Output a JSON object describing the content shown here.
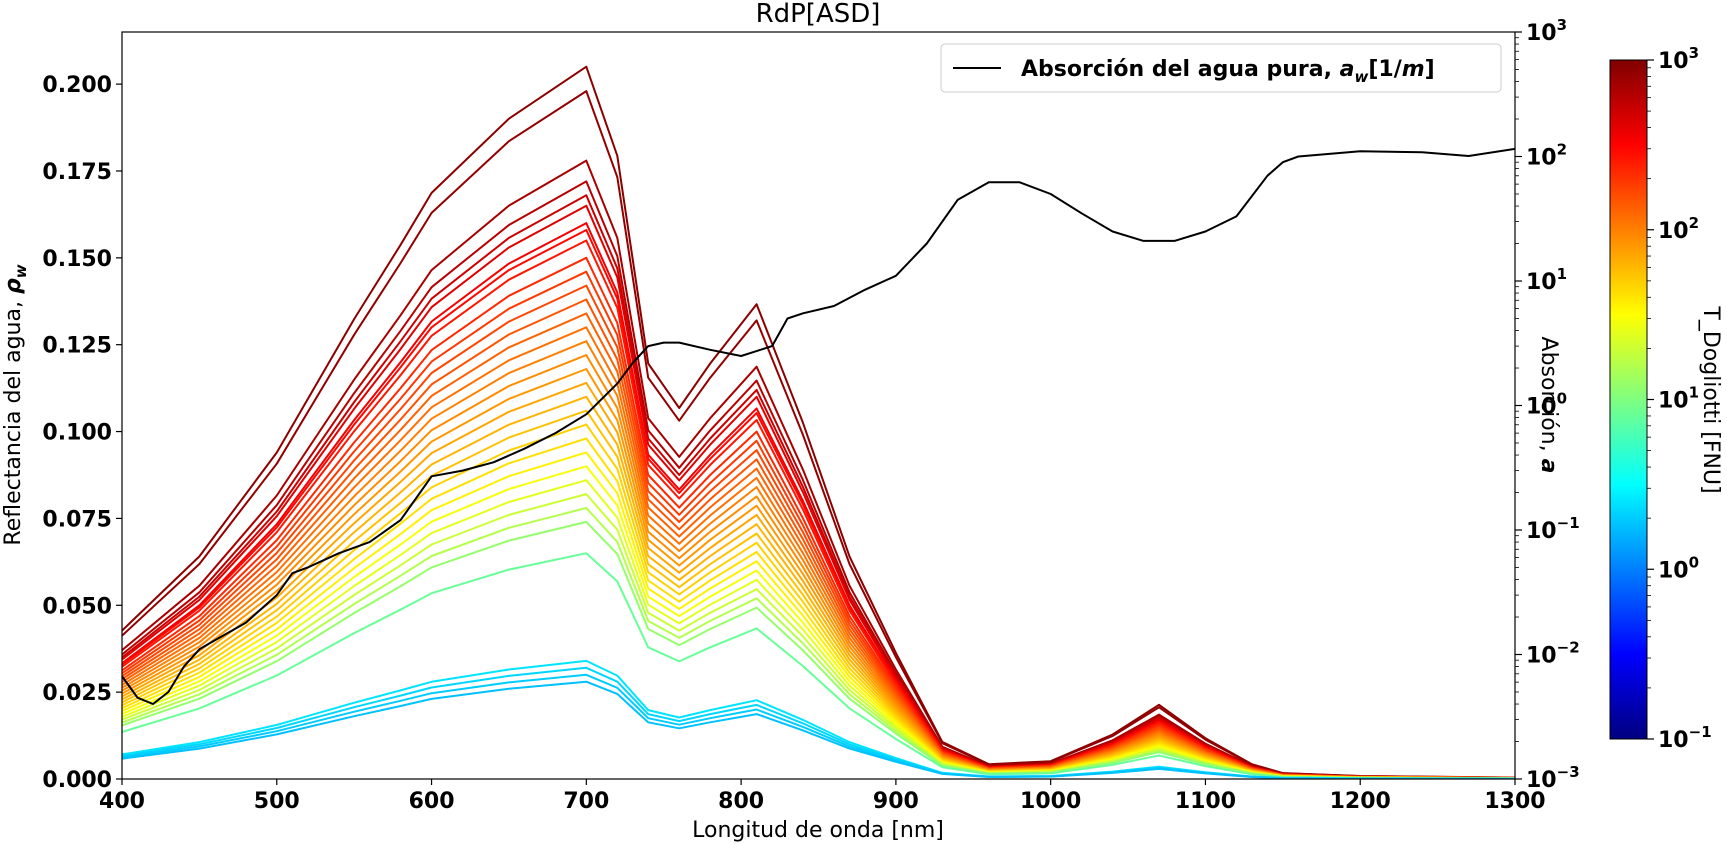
{
  "chart_data": {
    "type": "line",
    "title": "RdP[ASD]",
    "xlabel": "Longitud de onda [nm]",
    "ylabel_left_prefix": "Reflectancia del agua, ",
    "ylabel_left_symbol": "ρ",
    "ylabel_left_sub": "w",
    "ylabel_right_prefix": "Absorción, ",
    "ylabel_right_symbol": "a",
    "colorbar_label": "T_Dogliotti [FNU]",
    "legend": {
      "placement": "top-right",
      "label_prefix": "Absorción del agua pura, ",
      "label_symbol": "a",
      "label_sub": "w",
      "label_suffix": "[1/",
      "label_unit": "m",
      "label_close": "]"
    },
    "xlim": [
      400,
      1300
    ],
    "ylim_left": [
      0,
      0.215
    ],
    "ylim_right_log": [
      0.001,
      1000
    ],
    "colorbar_log_range": [
      0.1,
      1000
    ],
    "x_ticks": [
      "400",
      "500",
      "600",
      "700",
      "800",
      "900",
      "1000",
      "1100",
      "1200",
      "1300"
    ],
    "y_left_ticks": [
      "0.000",
      "0.025",
      "0.050",
      "0.075",
      "0.100",
      "0.125",
      "0.150",
      "0.175",
      "0.200"
    ],
    "y_right_ticks": [
      {
        "base": "10",
        "exp": "−3"
      },
      {
        "base": "10",
        "exp": "−2"
      },
      {
        "base": "10",
        "exp": "−1"
      },
      {
        "base": "10",
        "exp": "0"
      },
      {
        "base": "10",
        "exp": "1"
      },
      {
        "base": "10",
        "exp": "2"
      },
      {
        "base": "10",
        "exp": "3"
      }
    ],
    "colorbar_ticks": [
      {
        "base": "10",
        "exp": "−1"
      },
      {
        "base": "10",
        "exp": "0"
      },
      {
        "base": "10",
        "exp": "1"
      },
      {
        "base": "10",
        "exp": "2"
      },
      {
        "base": "10",
        "exp": "3"
      }
    ],
    "water_absorption_curve": {
      "name": "Absorción del agua pura",
      "color": "#000000",
      "x": [
        400,
        410,
        420,
        430,
        440,
        450,
        460,
        480,
        500,
        510,
        520,
        540,
        560,
        580,
        600,
        620,
        640,
        660,
        680,
        700,
        720,
        730,
        740,
        750,
        760,
        780,
        800,
        820,
        830,
        840,
        860,
        880,
        900,
        920,
        940,
        960,
        980,
        1000,
        1020,
        1040,
        1060,
        1080,
        1100,
        1120,
        1140,
        1150,
        1160,
        1180,
        1200,
        1240,
        1270,
        1300
      ],
      "y": [
        0.0067,
        0.0045,
        0.004,
        0.005,
        0.008,
        0.011,
        0.013,
        0.018,
        0.03,
        0.045,
        0.05,
        0.065,
        0.08,
        0.12,
        0.27,
        0.3,
        0.35,
        0.45,
        0.6,
        0.85,
        1.5,
        2.2,
        3.0,
        3.2,
        3.2,
        2.8,
        2.5,
        3.0,
        5.0,
        5.5,
        6.3,
        8.5,
        11.0,
        20.0,
        45.0,
        62.0,
        62.0,
        50.0,
        35.0,
        25.0,
        21.0,
        21.0,
        25.0,
        33.0,
        70.0,
        90.0,
        100.0,
        105.0,
        110.0,
        108.0,
        101.0,
        115.0
      ]
    },
    "turbidity_colormap": "jet",
    "reflectance_spectra_shape": {
      "x": [
        400,
        450,
        500,
        550,
        580,
        600,
        650,
        700,
        720,
        740,
        760,
        780,
        810,
        840,
        870,
        900,
        930,
        960,
        1000,
        1040,
        1070,
        1100,
        1130,
        1150,
        1200,
        1300
      ],
      "peak_shape": [
        0.2,
        0.3,
        0.44,
        0.62,
        0.72,
        0.79,
        0.89,
        0.96,
        0.84,
        0.56,
        0.5,
        0.56,
        0.64,
        0.48,
        0.3,
        0.17,
        0.05,
        0.02,
        0.024,
        0.06,
        0.1,
        0.055,
        0.02,
        0.008,
        0.004,
        0.002
      ]
    },
    "reflectance_series": [
      {
        "t": 900,
        "peak": 0.205
      },
      {
        "t": 850,
        "peak": 0.198
      },
      {
        "t": 700,
        "peak": 0.178
      },
      {
        "t": 600,
        "peak": 0.172
      },
      {
        "t": 500,
        "peak": 0.168
      },
      {
        "t": 420,
        "peak": 0.165
      },
      {
        "t": 350,
        "peak": 0.16
      },
      {
        "t": 300,
        "peak": 0.158
      },
      {
        "t": 260,
        "peak": 0.155
      },
      {
        "t": 220,
        "peak": 0.15
      },
      {
        "t": 190,
        "peak": 0.146
      },
      {
        "t": 170,
        "peak": 0.142
      },
      {
        "t": 150,
        "peak": 0.138
      },
      {
        "t": 130,
        "peak": 0.134
      },
      {
        "t": 115,
        "peak": 0.13
      },
      {
        "t": 100,
        "peak": 0.126
      },
      {
        "t": 90,
        "peak": 0.122
      },
      {
        "t": 80,
        "peak": 0.118
      },
      {
        "t": 70,
        "peak": 0.114
      },
      {
        "t": 62,
        "peak": 0.11
      },
      {
        "t": 55,
        "peak": 0.106
      },
      {
        "t": 48,
        "peak": 0.102
      },
      {
        "t": 42,
        "peak": 0.098
      },
      {
        "t": 36,
        "peak": 0.094
      },
      {
        "t": 30,
        "peak": 0.09
      },
      {
        "t": 25,
        "peak": 0.086
      },
      {
        "t": 20,
        "peak": 0.082
      },
      {
        "t": 16,
        "peak": 0.078
      },
      {
        "t": 12,
        "peak": 0.074
      },
      {
        "t": 8,
        "peak": 0.065
      },
      {
        "t": 2.5,
        "peak": 0.034
      },
      {
        "t": 2.2,
        "peak": 0.032
      },
      {
        "t": 2.0,
        "peak": 0.03
      },
      {
        "t": 1.8,
        "peak": 0.028
      }
    ]
  }
}
